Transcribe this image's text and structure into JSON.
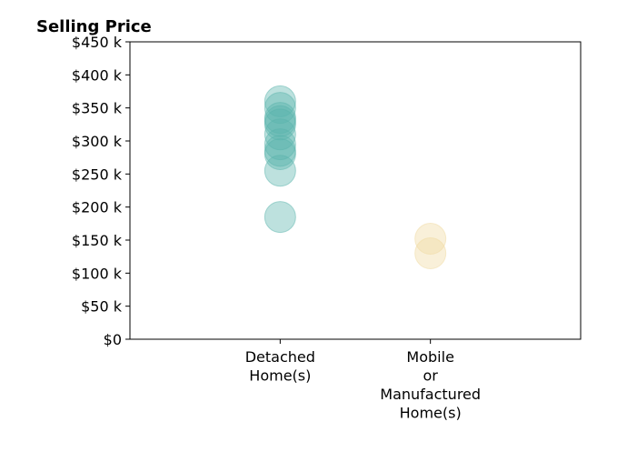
{
  "chart_data": {
    "type": "scatter",
    "title": "Selling Price",
    "xlabel": "",
    "ylabel": "",
    "ylim": [
      0,
      450000
    ],
    "y_ticks": [
      0,
      50000,
      100000,
      150000,
      200000,
      250000,
      300000,
      350000,
      400000,
      450000
    ],
    "y_tick_labels": [
      "$0",
      "$50 k",
      "$100 k",
      "$150 k",
      "$200 k",
      "$250 k",
      "$300 k",
      "$350 k",
      "$400 k",
      "$450 k"
    ],
    "categories": [
      [
        "Detached",
        "Home(s)"
      ],
      [
        "Mobile",
        "or",
        "Manufactured",
        "Home(s)"
      ]
    ],
    "x_range": [
      -1,
      2
    ],
    "grid": false,
    "legend": "none",
    "series": [
      {
        "category_index": 0,
        "color": "#5ab4ac",
        "values": [
          360000,
          350000,
          335000,
          330000,
          325000,
          310000,
          295000,
          285000,
          280000,
          255000,
          185000
        ]
      },
      {
        "category_index": 1,
        "color": "#f0d9a0",
        "values": [
          152000,
          130000
        ]
      }
    ]
  }
}
